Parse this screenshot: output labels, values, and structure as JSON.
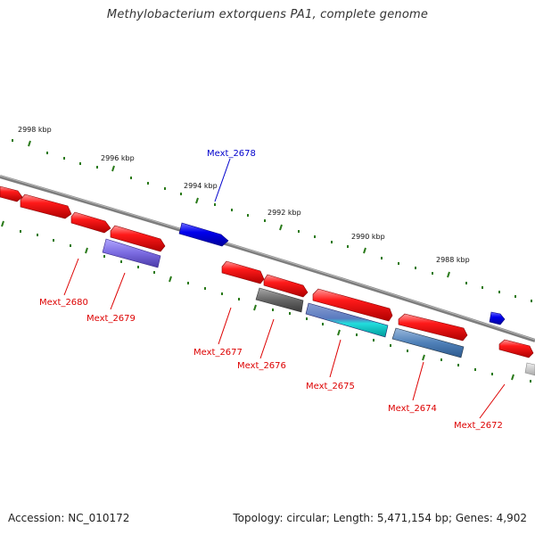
{
  "title": "Methylobacterium extorquens PA1, complete genome",
  "footer": {
    "accession": "Accession: NC_010172",
    "summary": "Topology: circular; Length: 5,471,154 bp; Genes: 4,902"
  },
  "colors": {
    "forward_gene": "#ff0000",
    "blue_gene": "#0000ee",
    "tick": "#2a7a1a",
    "backbone": "#888888",
    "label_red": "#dd0000",
    "label_blue": "#0000cc"
  },
  "scale_labels": [
    "2998 kbp",
    "2996 kbp",
    "2994 kbp",
    "2992 kbp",
    "2990 kbp",
    "2988 kbp"
  ],
  "gene_labels": [
    {
      "text": "Mext_2678",
      "color": "blue"
    },
    {
      "text": "Mext_2680",
      "color": "red"
    },
    {
      "text": "Mext_2679",
      "color": "red"
    },
    {
      "text": "Mext_2677",
      "color": "red"
    },
    {
      "text": "Mext_2676",
      "color": "red"
    },
    {
      "text": "Mext_2675",
      "color": "red"
    },
    {
      "text": "Mext_2674",
      "color": "red"
    },
    {
      "text": "Mext_2672",
      "color": "red"
    }
  ]
}
